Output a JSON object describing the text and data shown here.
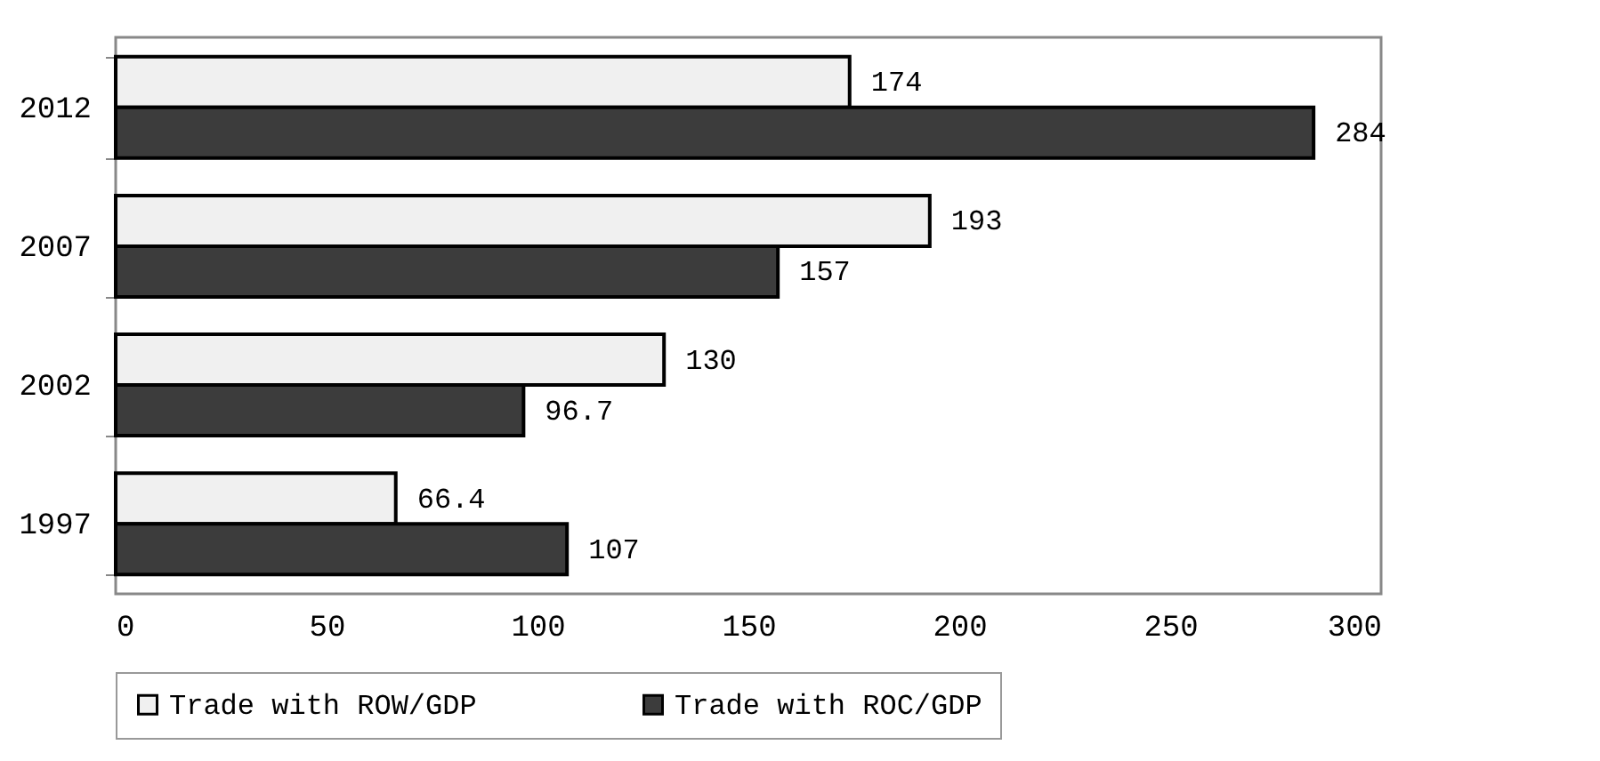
{
  "chart_data": {
    "type": "bar",
    "orientation": "horizontal",
    "categories": [
      "2012",
      "2007",
      "2002",
      "1997"
    ],
    "series": [
      {
        "name": "Trade with ROW/GDP",
        "color": "#f0f0f0",
        "values": [
          174,
          193,
          130,
          66.4
        ]
      },
      {
        "name": "Trade with ROC/GDP",
        "color": "#3c3c3c",
        "values": [
          284,
          157,
          96.7,
          107
        ]
      }
    ],
    "xlim": [
      0,
      300
    ],
    "xticks": [
      0,
      50,
      100,
      150,
      200,
      250,
      300
    ],
    "data_labels": true,
    "grid": false,
    "legend": "bottom"
  }
}
